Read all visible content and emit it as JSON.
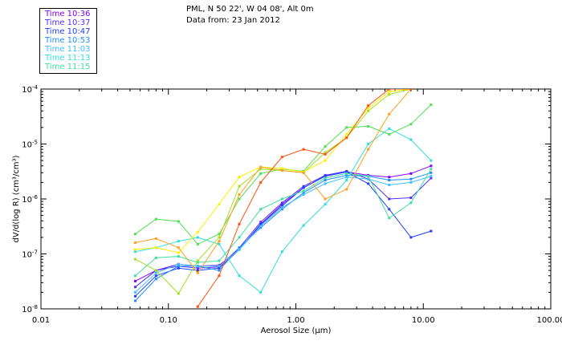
{
  "header": {
    "location": "PML, N 50 22', W 04 08', Alt 0m",
    "date_line": "Data from: 23 Jan 2012"
  },
  "chart_data": {
    "type": "line",
    "xlabel": "Aerosol Size (µm)",
    "ylabel": "dV/d(log R) (cm³/cm³)",
    "xscale": "log",
    "yscale": "log",
    "xlim": [
      0.01,
      100
    ],
    "ylim": [
      1e-08,
      0.0001
    ],
    "xticks": [
      {
        "value": 0.01,
        "label": "0.01"
      },
      {
        "value": 0.1,
        "label": "0.10"
      },
      {
        "value": 1,
        "label": "1.00"
      },
      {
        "value": 10,
        "label": "10.00"
      },
      {
        "value": 100,
        "label": "100.00"
      }
    ],
    "yticks": [
      {
        "value": 1e-08,
        "mant": "10",
        "exp": "-8"
      },
      {
        "value": 1e-07,
        "mant": "10",
        "exp": "-7"
      },
      {
        "value": 1e-06,
        "mant": "10",
        "exp": "-6"
      },
      {
        "value": 1e-05,
        "mant": "10",
        "exp": "-5"
      },
      {
        "value": 0.0001,
        "mant": "10",
        "exp": "-4"
      }
    ],
    "legend_position": "top-left",
    "series": [
      {
        "name": "Time 10:36",
        "color": "#7f00ff",
        "x": [
          0.055,
          0.08,
          0.12,
          0.17,
          0.25,
          0.36,
          0.53,
          0.78,
          1.15,
          1.7,
          2.5,
          3.7,
          5.4,
          8,
          11.5
        ],
        "y": [
          3.2e-08,
          5e-08,
          6.5e-08,
          6e-08,
          6.2e-08,
          1.2e-07,
          3.5e-07,
          8e-07,
          1.6e-06,
          2.6e-06,
          3.1e-06,
          2.7e-06,
          2.5e-06,
          2.9e-06,
          4e-06
        ]
      },
      {
        "name": "Time 10:37",
        "color": "#4f2fff",
        "x": [
          0.055,
          0.08,
          0.12,
          0.17,
          0.25,
          0.36,
          0.53,
          0.78,
          1.15,
          1.7,
          2.5,
          3.7,
          5.4,
          8,
          11.5
        ],
        "y": [
          2.5e-08,
          5e-08,
          6e-08,
          5.5e-08,
          5.8e-08,
          1.3e-07,
          3.8e-07,
          8.5e-07,
          1.7e-06,
          2.7e-06,
          3.2e-06,
          2.3e-06,
          1e-06,
          1.05e-06,
          2.4e-06
        ]
      },
      {
        "name": "Time 10:47",
        "color": "#1f3fff",
        "x": [
          0.055,
          0.08,
          0.12,
          0.17,
          0.25,
          0.36,
          0.53,
          0.78,
          1.15,
          1.7,
          2.5,
          3.7,
          5.4,
          8,
          11.5
        ],
        "y": [
          1.7e-08,
          4e-08,
          5.5e-08,
          5e-08,
          5.5e-08,
          1.2e-07,
          3.4e-07,
          7.5e-07,
          1.6e-06,
          2.6e-06,
          3.1e-06,
          1.9e-06,
          6.5e-07,
          2e-07,
          2.6e-07
        ]
      },
      {
        "name": "Time 10:53",
        "color": "#1f8fff",
        "x": [
          0.055,
          0.08,
          0.12,
          0.17,
          0.25,
          0.36,
          0.53,
          0.78,
          1.15,
          1.7,
          2.5,
          3.7,
          5.4,
          8,
          11.5
        ],
        "y": [
          1.4e-08,
          3.5e-08,
          6e-08,
          6e-08,
          5e-08,
          1.3e-07,
          3e-07,
          6.5e-07,
          1.3e-06,
          2.2e-06,
          2.7e-06,
          2.6e-06,
          2.2e-06,
          2.3e-06,
          3e-06
        ]
      },
      {
        "name": "Time 11:03",
        "color": "#3fbfff",
        "x": [
          0.055,
          0.08,
          0.12,
          0.17,
          0.25,
          0.36,
          0.53,
          0.78,
          1.15,
          1.7,
          2.5,
          3.7,
          5.4,
          8,
          11.5
        ],
        "y": [
          2e-08,
          4.5e-08,
          6.5e-08,
          6e-08,
          6e-08,
          1.2e-07,
          3.2e-07,
          7e-07,
          1.2e-06,
          1.9e-06,
          2.5e-06,
          2.3e-06,
          1.8e-06,
          2e-06,
          2.6e-06
        ]
      },
      {
        "name": "Time 11:13",
        "color": "#2fdfdf",
        "x": [
          0.055,
          0.08,
          0.12,
          0.17,
          0.25,
          0.36,
          0.53,
          0.78,
          1.15,
          1.7,
          2.5,
          3.7,
          5.4,
          8,
          11.5
        ],
        "y": [
          1.1e-07,
          1.3e-07,
          1.7e-07,
          2e-07,
          1.5e-07,
          4e-08,
          2e-08,
          1.1e-07,
          3.3e-07,
          8e-07,
          2.2e-06,
          1e-05,
          1.9e-05,
          1.2e-05,
          5e-06
        ]
      },
      {
        "name": "Time 11:15",
        "color": "#3fdf9f",
        "x": [
          0.055,
          0.08,
          0.12,
          0.17,
          0.25,
          0.36,
          0.53,
          0.78,
          1.15,
          1.7,
          2.5,
          3.7,
          5.4,
          8,
          11.5
        ],
        "y": [
          4e-08,
          8.5e-08,
          9e-08,
          7e-08,
          7.5e-08,
          2e-07,
          6.5e-07,
          1e-06,
          1.4e-06,
          2.4e-06,
          2.9e-06,
          2.6e-06,
          4.5e-07,
          8.5e-07,
          3.5e-06
        ]
      },
      {
        "name": "",
        "color": "#4fdf4f",
        "x": [
          0.055,
          0.08,
          0.12,
          0.17,
          0.25,
          0.36,
          0.53,
          0.78,
          1.15,
          1.7,
          2.5,
          3.7,
          5.4,
          8,
          11.5
        ],
        "y": [
          2.3e-07,
          4.3e-07,
          3.9e-07,
          1.5e-07,
          2.3e-07,
          1e-06,
          2.9e-06,
          3.5e-06,
          3.2e-06,
          9e-06,
          2e-05,
          2.1e-05,
          1.5e-05,
          2.3e-05,
          5.2e-05
        ]
      },
      {
        "name": "",
        "color": "#a0e020",
        "x": [
          0.055,
          0.08,
          0.12,
          0.17,
          0.25,
          0.36,
          0.53,
          0.78,
          1.15,
          1.7,
          2.5,
          3.7,
          5.4,
          8
        ],
        "y": [
          8e-08,
          5e-08,
          1.9e-08,
          7.5e-08,
          2e-07,
          1.7e-06,
          3.5e-06,
          3.3e-06,
          3e-06,
          7e-06,
          1.3e-05,
          4e-05,
          8e-05,
          0.0001
        ]
      },
      {
        "name": "",
        "color": "#ffee00",
        "x": [
          0.055,
          0.08,
          0.12,
          0.17,
          0.25,
          0.36,
          0.53,
          0.78,
          1.15,
          1.7,
          2.5,
          3.7,
          5.4,
          8
        ],
        "y": [
          1.2e-07,
          1.3e-07,
          1.05e-07,
          2.5e-07,
          8e-07,
          2.5e-06,
          3.8e-06,
          3.6e-06,
          3.1e-06,
          5e-06,
          1.5e-05,
          4.5e-05,
          9e-05,
          0.0001
        ]
      },
      {
        "name": "",
        "color": "#ff9f1f",
        "x": [
          0.055,
          0.08,
          0.12,
          0.17,
          0.25,
          0.36,
          0.53,
          0.78,
          1.15,
          1.7,
          2.5,
          3.7,
          5.4,
          8
        ],
        "y": [
          1.6e-07,
          1.9e-07,
          1.3e-07,
          4.5e-08,
          1.7e-07,
          1.2e-06,
          3.8e-06,
          3.3e-06,
          3e-06,
          1e-06,
          1.5e-06,
          8e-06,
          3.5e-05,
          0.0001
        ]
      },
      {
        "name": "",
        "color": "#ff4f0f",
        "x": [
          0.17,
          0.25,
          0.36,
          0.53,
          0.78,
          1.15,
          1.7,
          2.5,
          3.7,
          5.4,
          8
        ],
        "y": [
          1.1e-08,
          4e-08,
          3.5e-07,
          2e-06,
          5.8e-06,
          8e-06,
          6.5e-06,
          1.3e-05,
          5e-05,
          0.0001,
          0.0001
        ]
      }
    ]
  }
}
